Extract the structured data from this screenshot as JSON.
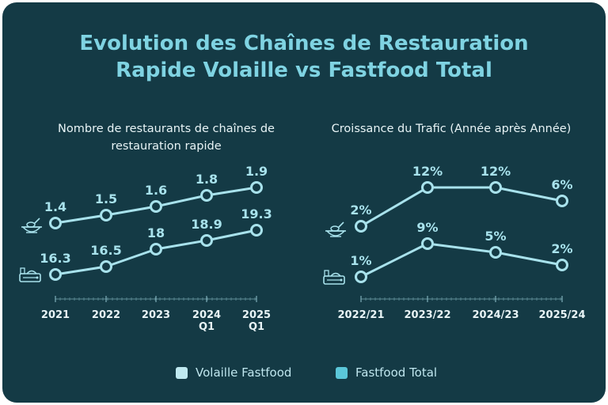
{
  "title": "Evolution des Chaînes de Restauration Rapide Volaille vs Fastfood Total",
  "title_lines": [
    "Evolution des Chaînes de Restauration",
    "Rapide Volaille vs Fastfood Total"
  ],
  "colors": {
    "background": "#143a45",
    "accent": "#7fd3e2",
    "line": "#a8e2ec",
    "text": "#e8f4f6",
    "series1": "#bfe9f0",
    "series2": "#5bc7d9"
  },
  "legend": [
    {
      "label": "Volaille Fastfood",
      "color": "#bfe9f0",
      "icon": "chicken-bowl-icon"
    },
    {
      "label": "Fastfood Total",
      "color": "#5bc7d9",
      "icon": "fastfood-tray-icon"
    }
  ],
  "chart_data": [
    {
      "type": "line",
      "title": "Nombre de restaurants de chaînes de restauration rapide",
      "title_lines": [
        "Nombre de restaurants de chaînes de",
        "restauration rapide"
      ],
      "x": [
        "2021",
        "2022",
        "2023",
        "2024 Q1",
        "2025 Q1"
      ],
      "x_lines": [
        [
          "2021"
        ],
        [
          "2022"
        ],
        [
          "2023"
        ],
        [
          "2024",
          "Q1"
        ],
        [
          "2025",
          "Q1"
        ]
      ],
      "series": [
        {
          "name": "Volaille Fastfood",
          "values": [
            1.4,
            1.5,
            1.6,
            1.8,
            1.9
          ],
          "labels": [
            "1.4",
            "1.5",
            "1.6",
            "1.8",
            "1.9"
          ]
        },
        {
          "name": "Fastfood Total",
          "values": [
            16.3,
            16.5,
            18,
            18.9,
            19.3
          ],
          "labels": [
            "16.3",
            "16.5",
            "18",
            "18.9",
            "19.3"
          ]
        }
      ]
    },
    {
      "type": "line",
      "title": "Croissance du Trafic (Année après Année)",
      "title_lines": [
        "Croissance du Trafic (Année après Année)"
      ],
      "x": [
        "2022/21",
        "2023/22",
        "2024/23",
        "2025/24"
      ],
      "x_lines": [
        [
          "2022/21"
        ],
        [
          "2023/22"
        ],
        [
          "2024/23"
        ],
        [
          "2025/24"
        ]
      ],
      "series": [
        {
          "name": "Volaille Fastfood",
          "values": [
            2,
            12,
            12,
            6
          ],
          "labels": [
            "2%",
            "12%",
            "12%",
            "6%"
          ]
        },
        {
          "name": "Fastfood Total",
          "values": [
            1,
            9,
            5,
            2
          ],
          "labels": [
            "1%",
            "9%",
            "5%",
            "2%"
          ]
        }
      ]
    }
  ]
}
